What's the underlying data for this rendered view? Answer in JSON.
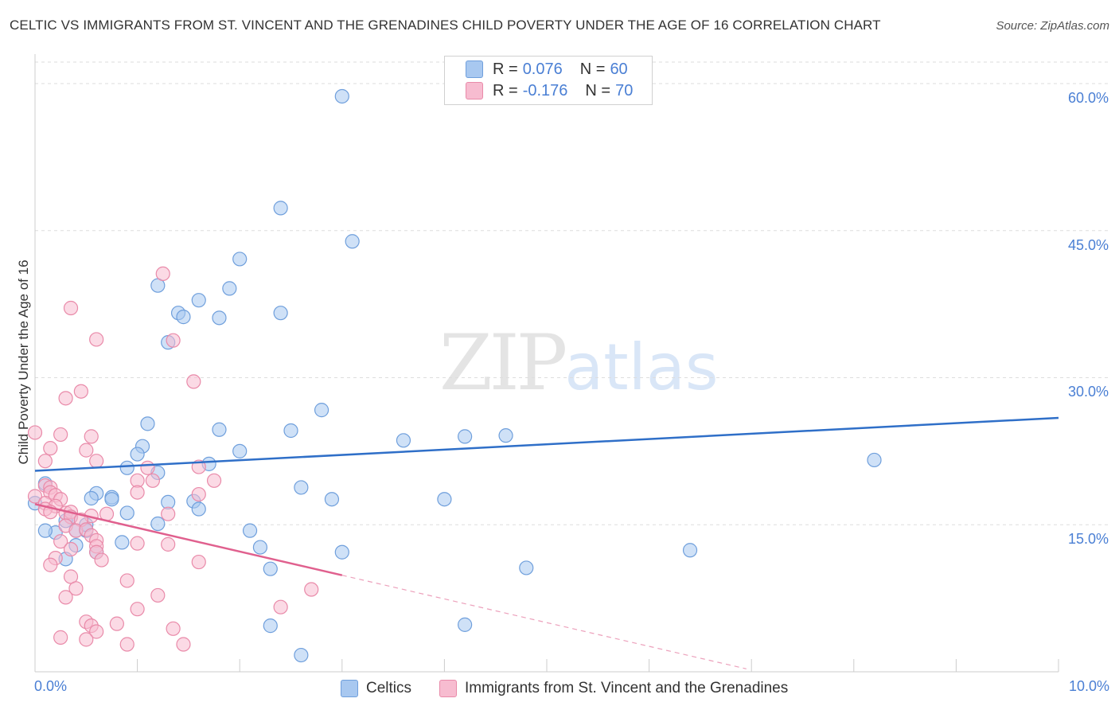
{
  "title": "CELTIC VS IMMIGRANTS FROM ST. VINCENT AND THE GRENADINES CHILD POVERTY UNDER THE AGE OF 16 CORRELATION CHART",
  "source": "Source: ZipAtlas.com",
  "watermark": {
    "zip": "ZIP",
    "atlas": "atlas"
  },
  "legend": {
    "r_label": "R =",
    "n_label": "N =",
    "rows": [
      {
        "r": "0.076",
        "n": "60"
      },
      {
        "r": "-0.176",
        "n": "70"
      }
    ]
  },
  "chart_data": {
    "type": "scatter",
    "ylabel": "Child Poverty Under the Age of 16",
    "xlim": [
      0,
      10
    ],
    "ylim": [
      0,
      63
    ],
    "x_ticks": [
      {
        "value": 0,
        "label": "0.0%"
      },
      {
        "value": 10,
        "label": "10.0%"
      }
    ],
    "y_ticks": [
      {
        "value": 15,
        "label": "15.0%"
      },
      {
        "value": 30,
        "label": "30.0%"
      },
      {
        "value": 45,
        "label": "45.0%"
      },
      {
        "value": 60,
        "label": "60.0%"
      }
    ],
    "grid": true,
    "series": [
      {
        "name": "Celtics",
        "color": "#a8c8f0",
        "stroke": "#6f9fdc",
        "trend_color": "#2f6fc8",
        "trend": {
          "x0": 0,
          "y0": 20.5,
          "x1": 10,
          "y1": 25.9,
          "solid_until": 10
        },
        "points": [
          [
            3.0,
            58.7
          ],
          [
            2.4,
            47.3
          ],
          [
            3.1,
            43.9
          ],
          [
            2.0,
            42.1
          ],
          [
            1.2,
            39.4
          ],
          [
            1.9,
            39.1
          ],
          [
            1.6,
            37.9
          ],
          [
            1.4,
            36.6
          ],
          [
            2.4,
            36.6
          ],
          [
            1.45,
            36.2
          ],
          [
            1.8,
            36.1
          ],
          [
            1.3,
            33.6
          ],
          [
            2.8,
            26.7
          ],
          [
            1.1,
            25.3
          ],
          [
            1.8,
            24.7
          ],
          [
            2.5,
            24.6
          ],
          [
            3.6,
            23.6
          ],
          [
            4.2,
            24.0
          ],
          [
            4.6,
            24.1
          ],
          [
            1.05,
            23.0
          ],
          [
            2.0,
            22.5
          ],
          [
            1.0,
            22.2
          ],
          [
            8.2,
            21.6
          ],
          [
            1.7,
            21.2
          ],
          [
            0.9,
            20.8
          ],
          [
            1.2,
            20.3
          ],
          [
            2.6,
            18.8
          ],
          [
            0.6,
            18.2
          ],
          [
            0.75,
            17.8
          ],
          [
            0.55,
            17.7
          ],
          [
            0.75,
            17.6
          ],
          [
            1.3,
            17.3
          ],
          [
            1.55,
            17.4
          ],
          [
            2.9,
            17.6
          ],
          [
            4.0,
            17.6
          ],
          [
            0.0,
            17.2
          ],
          [
            0.1,
            19.2
          ],
          [
            0.9,
            16.2
          ],
          [
            1.6,
            16.6
          ],
          [
            0.35,
            15.8
          ],
          [
            0.3,
            15.4
          ],
          [
            1.2,
            15.1
          ],
          [
            0.4,
            14.4
          ],
          [
            0.5,
            14.4
          ],
          [
            0.2,
            14.2
          ],
          [
            0.1,
            14.4
          ],
          [
            2.1,
            14.4
          ],
          [
            0.85,
            13.2
          ],
          [
            0.4,
            12.9
          ],
          [
            0.6,
            12.2
          ],
          [
            2.2,
            12.7
          ],
          [
            3.0,
            12.2
          ],
          [
            6.4,
            12.4
          ],
          [
            0.3,
            11.5
          ],
          [
            2.3,
            10.5
          ],
          [
            4.8,
            10.6
          ],
          [
            2.3,
            4.7
          ],
          [
            4.2,
            4.8
          ],
          [
            2.6,
            1.7
          ],
          [
            0.5,
            15.0
          ]
        ]
      },
      {
        "name": "Immigrants from St. Vincent and the Grenadines",
        "color": "#f7bcd0",
        "stroke": "#e98aa9",
        "trend_color": "#e0608e",
        "trend": {
          "x0": 0,
          "y0": 17.1,
          "x1": 6.95,
          "y1": 0.3,
          "solid_until": 3.0
        },
        "points": [
          [
            1.25,
            40.6
          ],
          [
            0.35,
            37.1
          ],
          [
            0.6,
            33.9
          ],
          [
            1.35,
            33.8
          ],
          [
            1.55,
            29.6
          ],
          [
            0.45,
            28.6
          ],
          [
            0.3,
            27.9
          ],
          [
            0.0,
            24.4
          ],
          [
            0.25,
            24.2
          ],
          [
            0.55,
            24.0
          ],
          [
            0.15,
            22.8
          ],
          [
            0.5,
            22.6
          ],
          [
            0.6,
            21.5
          ],
          [
            0.1,
            21.5
          ],
          [
            1.1,
            20.8
          ],
          [
            1.6,
            20.9
          ],
          [
            1.0,
            19.5
          ],
          [
            1.15,
            19.5
          ],
          [
            1.75,
            19.5
          ],
          [
            0.1,
            19.0
          ],
          [
            0.15,
            18.8
          ],
          [
            0.15,
            18.3
          ],
          [
            0.2,
            18.0
          ],
          [
            0.0,
            17.9
          ],
          [
            1.0,
            18.3
          ],
          [
            1.6,
            18.1
          ],
          [
            0.25,
            17.6
          ],
          [
            0.1,
            17.2
          ],
          [
            0.2,
            16.9
          ],
          [
            0.1,
            16.6
          ],
          [
            0.15,
            16.3
          ],
          [
            0.3,
            16.2
          ],
          [
            0.35,
            16.3
          ],
          [
            0.35,
            15.8
          ],
          [
            0.55,
            15.9
          ],
          [
            0.7,
            16.1
          ],
          [
            1.3,
            16.1
          ],
          [
            0.45,
            15.5
          ],
          [
            0.3,
            14.9
          ],
          [
            0.4,
            14.4
          ],
          [
            0.5,
            14.5
          ],
          [
            0.55,
            13.9
          ],
          [
            0.6,
            13.4
          ],
          [
            0.25,
            13.3
          ],
          [
            0.35,
            12.5
          ],
          [
            0.6,
            12.8
          ],
          [
            1.0,
            13.1
          ],
          [
            1.3,
            13.0
          ],
          [
            0.6,
            12.2
          ],
          [
            0.2,
            11.6
          ],
          [
            0.15,
            10.9
          ],
          [
            0.65,
            11.4
          ],
          [
            1.6,
            11.2
          ],
          [
            0.35,
            9.7
          ],
          [
            0.9,
            9.3
          ],
          [
            0.4,
            8.5
          ],
          [
            1.2,
            7.8
          ],
          [
            2.7,
            8.4
          ],
          [
            0.3,
            7.6
          ],
          [
            1.0,
            6.4
          ],
          [
            2.4,
            6.6
          ],
          [
            0.5,
            5.1
          ],
          [
            0.55,
            4.7
          ],
          [
            0.6,
            4.1
          ],
          [
            0.8,
            4.9
          ],
          [
            1.35,
            4.4
          ],
          [
            0.25,
            3.5
          ],
          [
            0.5,
            3.3
          ],
          [
            0.9,
            2.8
          ],
          [
            1.45,
            2.8
          ]
        ]
      }
    ]
  }
}
